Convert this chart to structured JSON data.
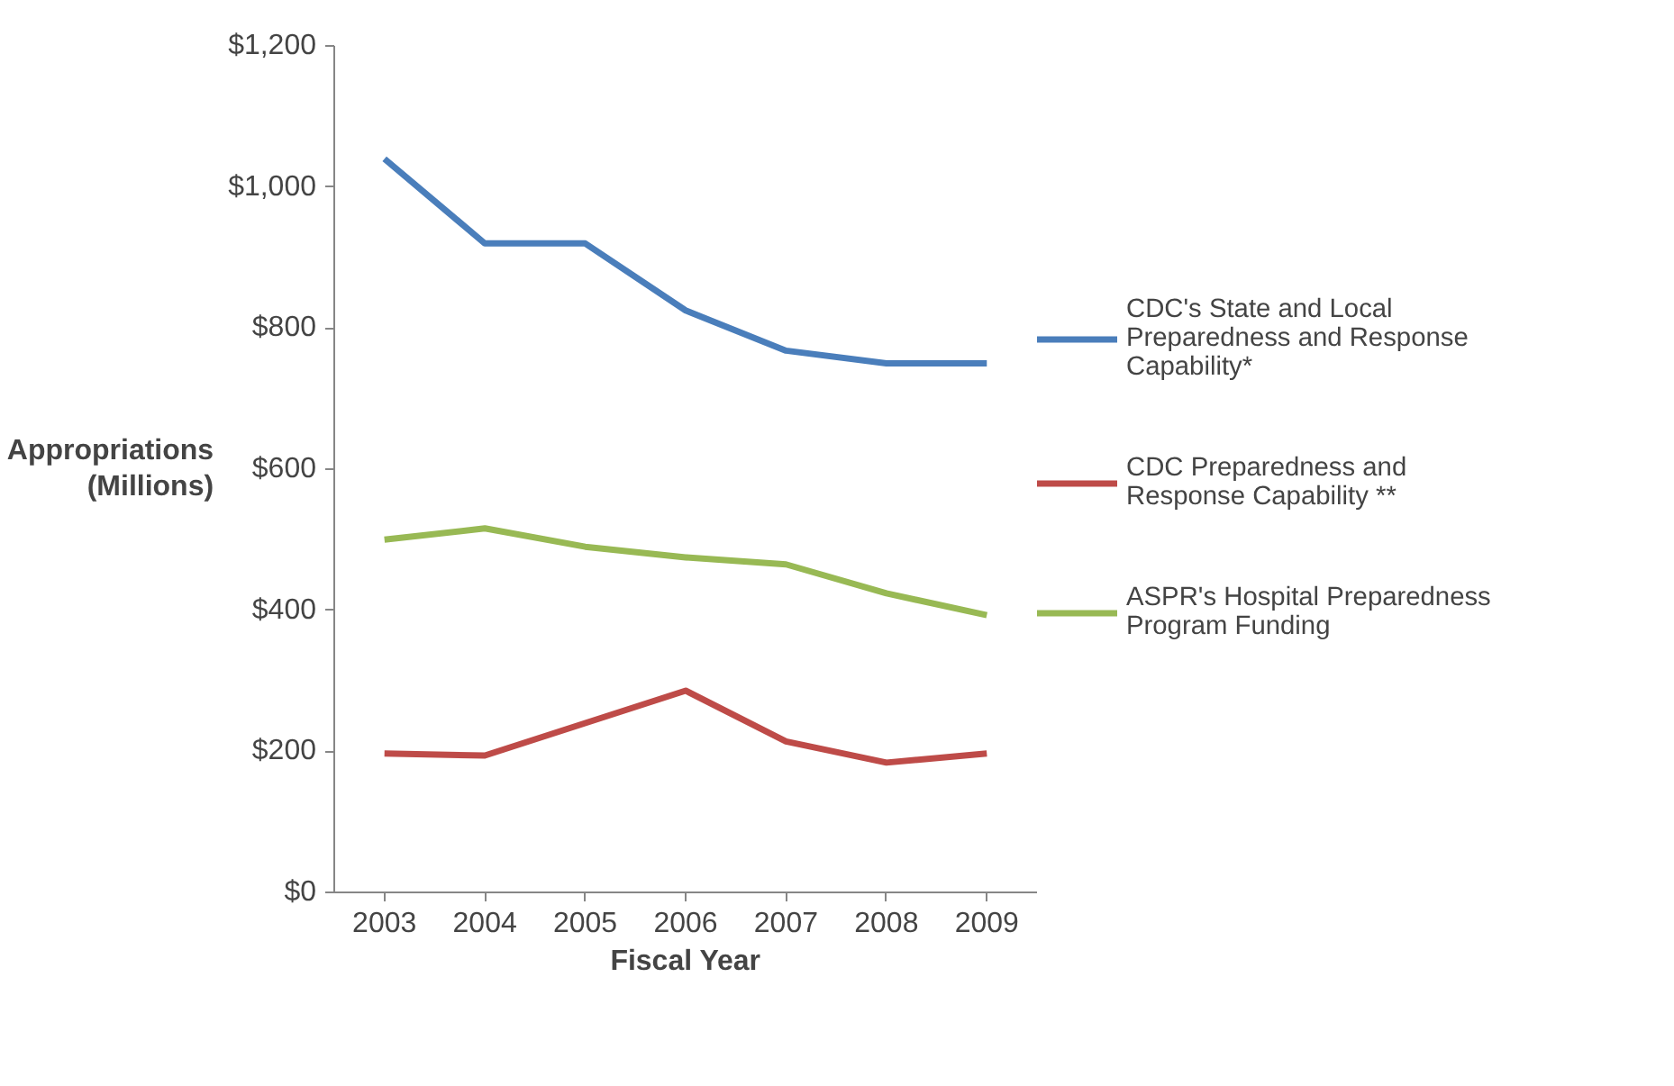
{
  "chart_data": {
    "type": "line",
    "xlabel": "Fiscal Year",
    "ylabel": "Appropriations (Millions)",
    "categories": [
      "2003",
      "2004",
      "2005",
      "2006",
      "2007",
      "2008",
      "2009"
    ],
    "series": [
      {
        "name": "CDC's State and Local Preparedness and Response Capability*",
        "color": "#4a7ebb",
        "values": [
          1040,
          920,
          920,
          825,
          768,
          750,
          750
        ]
      },
      {
        "name": "CDC Preparedness and Response Capability **",
        "color": "#be4b48",
        "values": [
          197,
          194,
          240,
          286,
          214,
          184,
          197
        ]
      },
      {
        "name": "ASPR's Hospital Preparedness Program Funding",
        "color": "#98b954",
        "values": [
          500,
          516,
          490,
          475,
          465,
          424,
          393
        ]
      }
    ],
    "ylim": [
      0,
      1200
    ],
    "yticks": [
      {
        "value": 0,
        "label": "$0"
      },
      {
        "value": 200,
        "label": "$200"
      },
      {
        "value": 400,
        "label": "$400"
      },
      {
        "value": 600,
        "label": "$600"
      },
      {
        "value": 800,
        "label": "$800"
      },
      {
        "value": 1000,
        "label": "$1,000"
      },
      {
        "value": 1200,
        "label": "$1,200"
      }
    ],
    "grid": false,
    "legend": "right",
    "marker": "none",
    "line_style": "solid"
  }
}
